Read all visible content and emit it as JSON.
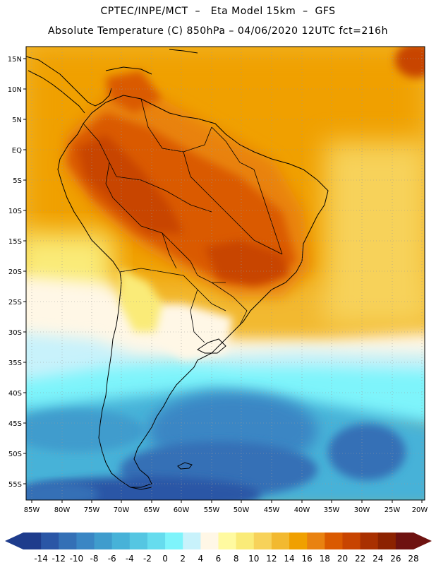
{
  "header": {
    "line1": "CPTEC/INPE/MCT  –   Eta Model 15km  –  GFS",
    "line2": "Absolute Temperature (C) 850hPa – 04/06/2020 12UTC fct=216h"
  },
  "map": {
    "lat_labels": [
      "15N",
      "10N",
      "5N",
      "EQ",
      "5S",
      "10S",
      "15S",
      "20S",
      "25S",
      "30S",
      "35S",
      "40S",
      "45S",
      "50S",
      "55S"
    ],
    "lon_labels": [
      "85W",
      "80W",
      "75W",
      "70W",
      "65W",
      "60W",
      "55W",
      "50W",
      "45W",
      "40W",
      "35W",
      "30W",
      "25W",
      "20W"
    ],
    "grid": "dotted"
  },
  "colorbar": {
    "labels": [
      "-14",
      "-12",
      "-10",
      "-8",
      "-6",
      "-4",
      "-2",
      "0",
      "2",
      "4",
      "6",
      "8",
      "10",
      "12",
      "14",
      "16",
      "18",
      "20",
      "22",
      "24",
      "26",
      "28"
    ],
    "colors": [
      "#1e3c8c",
      "#2a56a6",
      "#3470b6",
      "#3a86c4",
      "#3f9ccd",
      "#47b2d8",
      "#55c6e2",
      "#66dcee",
      "#7ef4fb",
      "#c8f2fb",
      "#fff7e6",
      "#fffaa0",
      "#faeb78",
      "#f7d25a",
      "#f2b930",
      "#f0a000",
      "#e98210",
      "#da5a00",
      "#c84400",
      "#a93000",
      "#8c2200",
      "#6e1210"
    ]
  }
}
